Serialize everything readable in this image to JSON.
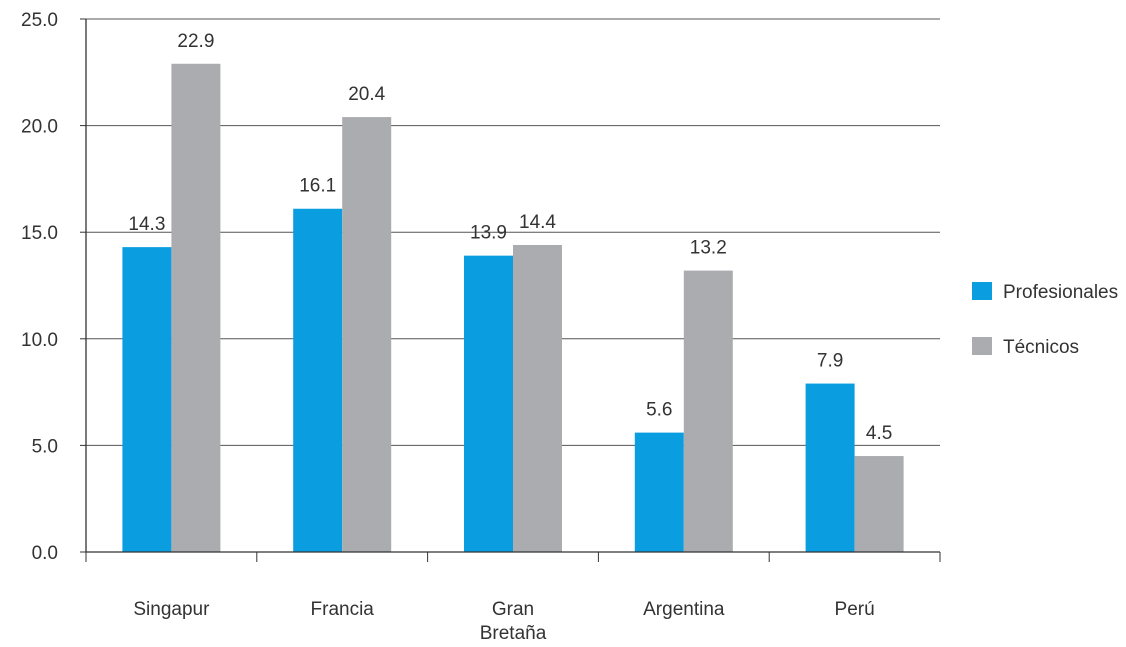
{
  "chart_data": {
    "type": "bar",
    "title": "",
    "xlabel": "",
    "ylabel": "",
    "ylim": [
      0,
      25
    ],
    "yticks": [
      "0.0",
      "5.0",
      "10.0",
      "15.0",
      "20.0",
      "25.0"
    ],
    "grid": true,
    "legend_position": "right",
    "categories": [
      [
        "Singapur"
      ],
      [
        "Francia"
      ],
      [
        "Gran",
        "Bretaña"
      ],
      [
        "Argentina"
      ],
      [
        "Perú"
      ]
    ],
    "series": [
      {
        "name": "Profesionales",
        "color": "#0a9ee0",
        "values": [
          14.3,
          16.1,
          13.9,
          5.6,
          7.9
        ],
        "labels": [
          "14.3",
          "16.1",
          "13.9",
          "5.6",
          "7.9"
        ]
      },
      {
        "name": "Técnicos",
        "color": "#aaacaf",
        "values": [
          22.9,
          20.4,
          14.4,
          13.2,
          4.5
        ],
        "labels": [
          "22.9",
          "20.4",
          "14.4",
          "13.2",
          "4.5"
        ]
      }
    ]
  }
}
